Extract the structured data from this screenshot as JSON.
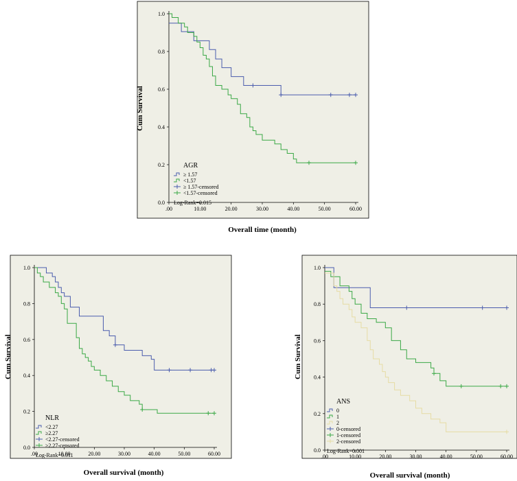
{
  "chart_data": [
    {
      "type": "line",
      "subtype": "kaplan-meier",
      "ylabel": "Cum Survival",
      "xlabel": "Overall time (month)",
      "xlim": [
        0,
        60
      ],
      "ylim": [
        0,
        1.0
      ],
      "xticks": [
        0,
        10,
        20,
        30,
        40,
        50,
        60
      ],
      "xtick_labels": [
        ".00",
        "10.00",
        "20.00",
        "30.00",
        "40.00",
        "50.00",
        "60.00"
      ],
      "yticks": [
        0,
        0.2,
        0.4,
        0.6,
        0.8,
        1.0
      ],
      "ytick_labels": [
        "0.0",
        "0.2",
        "0.4",
        "0.6",
        "0.8",
        "1.0"
      ],
      "legend_title": "AGR",
      "legend_position": "bottom-left",
      "annotation": "Log-Rank=0.015",
      "legend": [
        {
          "label": "≥ 1.57",
          "kind": "step",
          "color": "#4a5cad"
        },
        {
          "label": "<1.57",
          "kind": "step",
          "color": "#3aa845"
        },
        {
          "label": "≥ 1.57-censored",
          "kind": "censor",
          "color": "#4a5cad"
        },
        {
          "label": "<1.57-censored",
          "kind": "censor",
          "color": "#3aa845"
        }
      ],
      "series": [
        {
          "name": "≥ 1.57",
          "color": "#4a5cad",
          "x": [
            0,
            2,
            4,
            6,
            8,
            10,
            13,
            15,
            17,
            20,
            24,
            36,
            60
          ],
          "y": [
            0.95,
            0.95,
            0.905,
            0.905,
            0.857,
            0.857,
            0.81,
            0.76,
            0.714,
            0.667,
            0.62,
            0.57,
            0.57
          ],
          "censored": [
            {
              "x": 27,
              "y": 0.62
            },
            {
              "x": 36,
              "y": 0.57
            },
            {
              "x": 52,
              "y": 0.57
            },
            {
              "x": 58,
              "y": 0.57
            },
            {
              "x": 60,
              "y": 0.57
            }
          ]
        },
        {
          "name": "<1.57",
          "color": "#3aa845",
          "x": [
            0,
            1,
            3,
            5,
            6,
            8,
            9,
            10,
            11,
            12,
            13,
            14,
            15,
            17,
            19,
            20,
            22,
            23,
            25,
            26,
            27,
            28,
            30,
            34,
            36,
            38,
            40,
            41,
            60
          ],
          "y": [
            1.0,
            0.98,
            0.95,
            0.93,
            0.9,
            0.88,
            0.85,
            0.82,
            0.78,
            0.76,
            0.72,
            0.67,
            0.62,
            0.6,
            0.57,
            0.55,
            0.52,
            0.47,
            0.45,
            0.4,
            0.38,
            0.36,
            0.33,
            0.31,
            0.28,
            0.26,
            0.23,
            0.21,
            0.21
          ],
          "censored": [
            {
              "x": 45,
              "y": 0.21
            },
            {
              "x": 60,
              "y": 0.21
            }
          ]
        }
      ]
    },
    {
      "type": "line",
      "subtype": "kaplan-meier",
      "ylabel": "Cum Survival",
      "xlabel": "Overall survival (month)",
      "xlim": [
        0,
        60
      ],
      "ylim": [
        0,
        1.0
      ],
      "xticks": [
        0,
        10,
        20,
        30,
        40,
        50,
        60
      ],
      "xtick_labels": [
        ".00",
        "10.00",
        "20.00",
        "30.00",
        "40.00",
        "50.00",
        "60.00"
      ],
      "yticks": [
        0,
        0.2,
        0.4,
        0.6,
        0.8,
        1.0
      ],
      "ytick_labels": [
        "0.0",
        "0.2",
        "0.4",
        "0.6",
        "0.8",
        "1.0"
      ],
      "legend_title": "NLR",
      "legend_position": "bottom-left",
      "annotation": "Log-Rank=0.011",
      "legend": [
        {
          "label": "<2.27",
          "kind": "step",
          "color": "#4a5cad"
        },
        {
          "label": "≥2.27",
          "kind": "step",
          "color": "#3aa845"
        },
        {
          "label": "<2.27-censored",
          "kind": "censor",
          "color": "#4a5cad"
        },
        {
          "label": "≥2.27-censored",
          "kind": "censor",
          "color": "#3aa845"
        }
      ],
      "series": [
        {
          "name": "<2.27",
          "color": "#4a5cad",
          "x": [
            0,
            4,
            6,
            7,
            8,
            9,
            10,
            12,
            15,
            23,
            25,
            27,
            30,
            36,
            39,
            40,
            60
          ],
          "y": [
            1.0,
            0.97,
            0.95,
            0.92,
            0.89,
            0.86,
            0.84,
            0.78,
            0.73,
            0.65,
            0.62,
            0.57,
            0.54,
            0.51,
            0.49,
            0.43,
            0.43
          ],
          "censored": [
            {
              "x": 27,
              "y": 0.57
            },
            {
              "x": 45,
              "y": 0.43
            },
            {
              "x": 52,
              "y": 0.43
            },
            {
              "x": 59,
              "y": 0.43
            },
            {
              "x": 60,
              "y": 0.43
            }
          ]
        },
        {
          "name": "≥2.27",
          "color": "#3aa845",
          "x": [
            0,
            1,
            2,
            3,
            5,
            7,
            8,
            9,
            10,
            11,
            14,
            15,
            16,
            17,
            18,
            19,
            20,
            22,
            24,
            26,
            28,
            30,
            32,
            35,
            36,
            41,
            60
          ],
          "y": [
            1.0,
            0.97,
            0.95,
            0.92,
            0.89,
            0.86,
            0.84,
            0.8,
            0.77,
            0.69,
            0.61,
            0.55,
            0.52,
            0.5,
            0.48,
            0.45,
            0.43,
            0.4,
            0.37,
            0.34,
            0.31,
            0.29,
            0.26,
            0.24,
            0.21,
            0.19,
            0.19
          ],
          "censored": [
            {
              "x": 36,
              "y": 0.21
            },
            {
              "x": 58,
              "y": 0.19
            },
            {
              "x": 60,
              "y": 0.19
            }
          ]
        }
      ]
    },
    {
      "type": "line",
      "subtype": "kaplan-meier",
      "ylabel": "Cum Survival",
      "xlabel": "Overall survival (month)",
      "xlim": [
        0,
        60
      ],
      "ylim": [
        0,
        1.0
      ],
      "xticks": [
        0,
        10,
        20,
        30,
        40,
        50,
        60
      ],
      "xtick_labels": [
        ".00",
        "10.00",
        "20.00",
        "30.00",
        "40.00",
        "50.00",
        "60.00"
      ],
      "yticks": [
        0,
        0.2,
        0.4,
        0.6,
        0.8,
        1.0
      ],
      "ytick_labels": [
        "0.0",
        "0.2",
        "0.4",
        "0.6",
        "0.8",
        "1.0"
      ],
      "legend_title": "ANS",
      "legend_position": "bottom-left",
      "annotation": "Log-Rank=0.001",
      "legend": [
        {
          "label": "0",
          "kind": "step",
          "color": "#4a5cad"
        },
        {
          "label": "1",
          "kind": "step",
          "color": "#3aa845"
        },
        {
          "label": "2",
          "kind": "step",
          "color": "#e6dca4"
        },
        {
          "label": "0-censored",
          "kind": "censor",
          "color": "#4a5cad"
        },
        {
          "label": "1-censored",
          "kind": "censor",
          "color": "#3aa845"
        },
        {
          "label": "2-censored",
          "kind": "censor",
          "color": "#e6dca4"
        }
      ],
      "series": [
        {
          "name": "0",
          "color": "#4a5cad",
          "x": [
            0,
            3,
            15,
            60
          ],
          "y": [
            1.0,
            0.89,
            0.78,
            0.78
          ],
          "censored": [
            {
              "x": 27,
              "y": 0.78
            },
            {
              "x": 52,
              "y": 0.78
            },
            {
              "x": 60,
              "y": 0.78
            }
          ]
        },
        {
          "name": "1",
          "color": "#3aa845",
          "x": [
            0,
            2,
            5,
            8,
            9,
            10,
            12,
            14,
            17,
            20,
            22,
            25,
            27,
            30,
            35,
            36,
            38,
            40,
            60
          ],
          "y": [
            0.98,
            0.95,
            0.9,
            0.87,
            0.83,
            0.8,
            0.75,
            0.72,
            0.7,
            0.67,
            0.6,
            0.55,
            0.5,
            0.48,
            0.45,
            0.42,
            0.38,
            0.35,
            0.35
          ],
          "censored": [
            {
              "x": 36,
              "y": 0.42
            },
            {
              "x": 45,
              "y": 0.35
            },
            {
              "x": 58,
              "y": 0.35
            },
            {
              "x": 60,
              "y": 0.35
            }
          ]
        },
        {
          "name": "2",
          "color": "#e6dca4",
          "x": [
            0,
            3,
            4,
            5,
            6,
            8,
            9,
            10,
            12,
            14,
            15,
            16,
            18,
            19,
            20,
            21,
            23,
            25,
            28,
            30,
            32,
            35,
            38,
            40,
            60
          ],
          "y": [
            0.97,
            0.9,
            0.87,
            0.83,
            0.8,
            0.77,
            0.73,
            0.7,
            0.67,
            0.6,
            0.55,
            0.5,
            0.47,
            0.43,
            0.4,
            0.37,
            0.33,
            0.3,
            0.27,
            0.23,
            0.2,
            0.17,
            0.15,
            0.1,
            0.1
          ],
          "censored": [
            {
              "x": 60,
              "y": 0.1
            }
          ]
        }
      ]
    }
  ]
}
